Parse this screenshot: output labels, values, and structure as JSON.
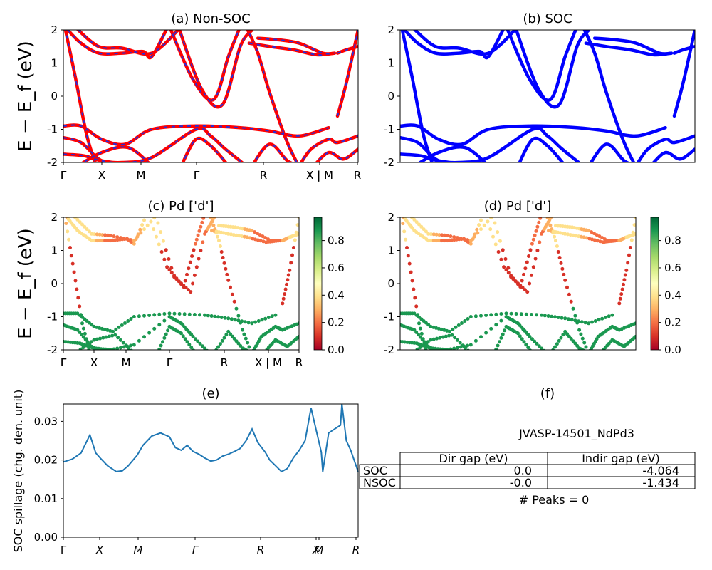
{
  "chart_data": [
    {
      "panel": "a",
      "type": "line",
      "title": "(a) Non-SOC",
      "ylabel": "E − E_f (eV)",
      "ylim": [
        -2,
        2
      ],
      "yticks": [
        "-2",
        "-1",
        "0",
        "1",
        "2"
      ],
      "xticks": [
        "Γ",
        "X",
        "M",
        "Γ",
        "R",
        "X | M",
        "R"
      ],
      "colors": {
        "bands": "#ff0000",
        "overlay": "#2b2bd6"
      }
    },
    {
      "panel": "b",
      "type": "line",
      "title": "(b) SOC",
      "ylim": [
        -2,
        2
      ],
      "yticks": [
        "-2",
        "-1",
        "0",
        "1",
        "2"
      ],
      "xticks": [
        "Γ",
        "X",
        "M",
        "Γ",
        "R",
        "X | M",
        "R"
      ],
      "colors": {
        "bands": "#0000ff"
      }
    },
    {
      "panel": "c",
      "type": "scatter",
      "title": "(c)  Pd ['d']",
      "ylabel": "E − E_f (eV)",
      "ylim": [
        -2,
        2
      ],
      "yticks": [
        "-2",
        "-1",
        "0",
        "1",
        "2"
      ],
      "xticks": [
        "Γ",
        "X",
        "M",
        "Γ",
        "R",
        "X | M",
        "R"
      ],
      "colorbar": {
        "range": [
          0.0,
          0.97
        ],
        "ticks": [
          "0.0",
          "0.2",
          "0.4",
          "0.6",
          "0.8"
        ],
        "colormap": "RdYlGn"
      }
    },
    {
      "panel": "d",
      "type": "scatter",
      "title": "(d) Pd ['d']",
      "ylim": [
        -2,
        2
      ],
      "yticks": [
        "-2",
        "-1",
        "0",
        "1",
        "2"
      ],
      "xticks": [
        "Γ",
        "X",
        "M",
        "Γ",
        "R",
        "X | M",
        "R"
      ],
      "colorbar": {
        "range": [
          0.0,
          0.97
        ],
        "ticks": [
          "0.0",
          "0.2",
          "0.4",
          "0.6",
          "0.8"
        ],
        "colormap": "RdYlGn"
      }
    },
    {
      "panel": "e",
      "type": "line",
      "title": "(e)",
      "ylabel": "SOC spillage (chg. den. unit)",
      "ylim": [
        0.0,
        0.0345
      ],
      "yticks": [
        "0.00",
        "0.01",
        "0.02",
        "0.03"
      ],
      "xticks": [
        "Γ",
        "X",
        "M",
        "Γ",
        "R",
        "X",
        "M",
        "R"
      ],
      "x": [
        0,
        0.03,
        0.06,
        0.09,
        0.11,
        0.125,
        0.15,
        0.18,
        0.2,
        0.22,
        0.25,
        0.27,
        0.3,
        0.33,
        0.36,
        0.38,
        0.4,
        0.42,
        0.44,
        0.46,
        0.48,
        0.5,
        0.52,
        0.54,
        0.56,
        0.58,
        0.6,
        0.62,
        0.64,
        0.66,
        0.685,
        0.7,
        0.72,
        0.74,
        0.76,
        0.78,
        0.8,
        0.82,
        0.84,
        0.86,
        0.875,
        0.88,
        0.9,
        0.92,
        0.94,
        0.945,
        0.96,
        0.975,
        1
      ],
      "values": [
        0.0195,
        0.0202,
        0.0218,
        0.0265,
        0.0218,
        0.0205,
        0.0185,
        0.017,
        0.0172,
        0.0185,
        0.0212,
        0.0238,
        0.0262,
        0.027,
        0.026,
        0.0232,
        0.0225,
        0.0238,
        0.0222,
        0.0215,
        0.0205,
        0.0197,
        0.02,
        0.021,
        0.0215,
        0.0222,
        0.023,
        0.025,
        0.028,
        0.0245,
        0.022,
        0.02,
        0.0185,
        0.017,
        0.0178,
        0.0205,
        0.0225,
        0.025,
        0.0335,
        0.027,
        0.022,
        0.017,
        0.027,
        0.028,
        0.029,
        0.0345,
        0.025,
        0.0225,
        0.017
      ],
      "color": "#1f77b4"
    },
    {
      "panel": "f",
      "type": "table",
      "title": "(f)",
      "caption": "JVASP-14501_NdPd3",
      "columns": [
        "",
        "Dir gap (eV)",
        "Indir gap (eV)"
      ],
      "rows": [
        {
          "label": "SOC",
          "dir": "0.0",
          "indir": "-4.064"
        },
        {
          "label": "NSOC",
          "dir": "-0.0",
          "indir": "-1.434"
        }
      ],
      "footer": "# Peaks = 0"
    }
  ]
}
